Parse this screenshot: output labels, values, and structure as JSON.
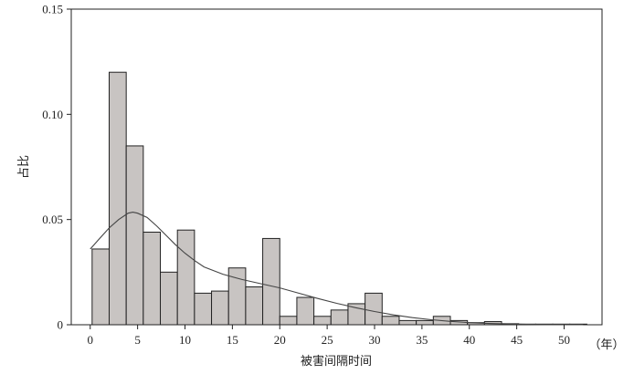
{
  "chart_data": {
    "type": "bar",
    "xlabel": "被害间隔时间",
    "ylabel": "占比",
    "x_unit_label": "（年）",
    "xlim": [
      -2,
      54
    ],
    "ylim": [
      0,
      0.15
    ],
    "xticks": [
      0,
      5,
      10,
      15,
      20,
      25,
      30,
      35,
      40,
      45,
      50
    ],
    "xtick_labels": [
      "0",
      "5",
      "10",
      "15",
      "20",
      "25",
      "30",
      "35",
      "40",
      "45",
      "50"
    ],
    "yticks": [
      0,
      0.05,
      0.1,
      0.15
    ],
    "ytick_labels": [
      "0",
      "0.05",
      "0.10",
      "0.15"
    ],
    "bin_width": 1.8,
    "bin_start": 0.2,
    "values": [
      0.036,
      0.12,
      0.085,
      0.044,
      0.025,
      0.045,
      0.015,
      0.016,
      0.027,
      0.018,
      0.041,
      0.004,
      0.013,
      0.004,
      0.007,
      0.01,
      0.015,
      0.004,
      0.002,
      0.002,
      0.004,
      0.002,
      0.001,
      0.0015,
      0.0005,
      0.0003,
      0.0003,
      0.0003,
      0.0003
    ],
    "bar_fill": "#c8c4c2",
    "bar_stroke": "#222222",
    "density_curve": {
      "x": [
        0,
        1,
        2,
        3,
        4,
        4.5,
        5,
        6,
        7,
        8,
        9,
        10,
        11,
        12,
        14,
        16,
        18,
        20,
        22,
        24,
        26,
        28,
        30,
        32,
        34,
        36,
        38,
        40,
        42,
        44,
        46,
        48,
        50,
        52
      ],
      "y": [
        0.036,
        0.041,
        0.046,
        0.05,
        0.053,
        0.0535,
        0.053,
        0.051,
        0.047,
        0.0425,
        0.038,
        0.034,
        0.0305,
        0.0275,
        0.024,
        0.0215,
        0.0195,
        0.0175,
        0.015,
        0.0125,
        0.0102,
        0.0081,
        0.0063,
        0.0047,
        0.0034,
        0.0024,
        0.0016,
        0.001,
        0.0006,
        0.0004,
        0.0002,
        0.0001,
        0.0001,
        0.0
      ]
    },
    "line_color": "#444444",
    "grid": false
  }
}
